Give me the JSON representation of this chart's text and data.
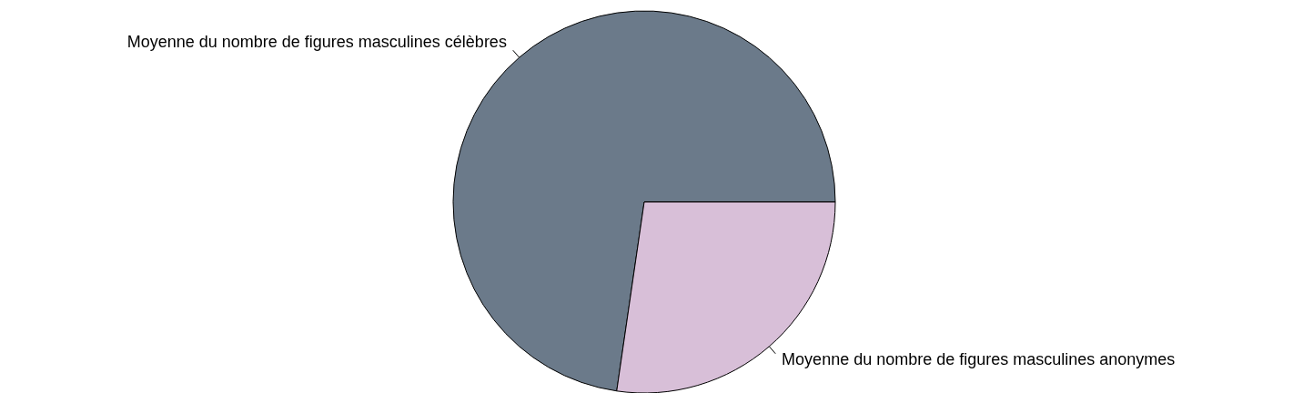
{
  "chart_data": {
    "type": "pie",
    "categories": [
      "Moyenne du nombre de figures masculines célèbres",
      "Moyenne du nombre de figures masculines anonymes"
    ],
    "values": [
      72.7,
      27.3
    ],
    "colors": [
      "#6b7a8a",
      "#d8bfd8"
    ]
  }
}
